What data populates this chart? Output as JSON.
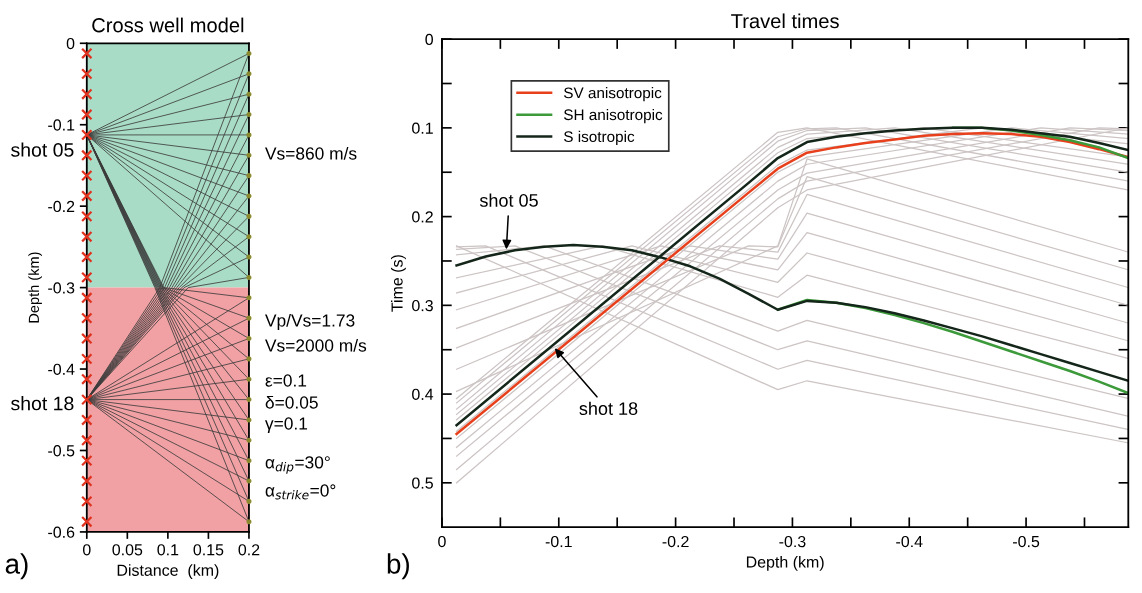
{
  "chart_data": [
    {
      "type": "line",
      "title": "Cross well model",
      "xlabel": "Distance  (km)",
      "ylabel": "Depth (km)",
      "xlim": [
        0,
        0.2
      ],
      "ylim": [
        -0.6,
        0
      ],
      "xticks": [
        0,
        0.05,
        0.1,
        0.15,
        0.2
      ],
      "yticks": [
        0,
        -0.1,
        -0.2,
        -0.3,
        -0.4,
        -0.5,
        -0.6
      ],
      "grid": false,
      "legend": false,
      "bands": [
        {
          "axis": "y",
          "from": -0.3,
          "to": 0,
          "color": "#a9dcc6"
        },
        {
          "axis": "y",
          "from": -0.6,
          "to": -0.3,
          "color": "#f1a1a4"
        }
      ],
      "annotations": [
        "Vs=860 m/s",
        "Vp/Vs=1.73",
        "Vs=2000 m/s",
        "ε=0.1",
        "δ=0.05",
        "γ=0.1",
        "α$_{dip}$=30°",
        "α$_{strike}$=0°",
        "a)",
        {
          "text": "shot 05",
          "x": 0,
          "y": -0.1125
        },
        {
          "text": "shot 18",
          "x": 0,
          "y": -0.4375
        }
      ],
      "series": [
        {
          "type": "line",
          "color": "#3c3c3c",
          "x": [
            0,
            0.2
          ],
          "values": [
            -0.1125,
            -0.0125
          ]
        },
        {
          "type": "line",
          "color": "#3c3c3c",
          "x": [
            0,
            0.2
          ],
          "values": [
            -0.1125,
            -0.0375
          ]
        },
        {
          "type": "line",
          "color": "#3c3c3c",
          "x": [
            0,
            0.2
          ],
          "values": [
            -0.1125,
            -0.0625
          ]
        },
        {
          "type": "line",
          "color": "#3c3c3c",
          "x": [
            0,
            0.2
          ],
          "values": [
            -0.1125,
            -0.0875
          ]
        },
        {
          "type": "line",
          "color": "#3c3c3c",
          "x": [
            0,
            0.2
          ],
          "values": [
            -0.1125,
            -0.1125
          ]
        },
        {
          "type": "line",
          "color": "#3c3c3c",
          "x": [
            0,
            0.2
          ],
          "values": [
            -0.1125,
            -0.1375
          ]
        },
        {
          "type": "line",
          "color": "#3c3c3c",
          "x": [
            0,
            0.2
          ],
          "values": [
            -0.1125,
            -0.1625
          ]
        },
        {
          "type": "line",
          "color": "#3c3c3c",
          "x": [
            0,
            0.2
          ],
          "values": [
            -0.1125,
            -0.1875
          ]
        },
        {
          "type": "line",
          "color": "#3c3c3c",
          "x": [
            0,
            0.2
          ],
          "values": [
            -0.1125,
            -0.2125
          ]
        },
        {
          "type": "line",
          "color": "#3c3c3c",
          "x": [
            0,
            0.2
          ],
          "values": [
            -0.1125,
            -0.2375
          ]
        },
        {
          "type": "line",
          "color": "#3c3c3c",
          "x": [
            0,
            0.2
          ],
          "values": [
            -0.1125,
            -0.2625
          ]
        },
        {
          "type": "line",
          "color": "#3c3c3c",
          "x": [
            0,
            0.2
          ],
          "values": [
            -0.1125,
            -0.2875
          ]
        },
        {
          "type": "line",
          "color": "#3c3c3c",
          "x": [
            0,
            0.095,
            0.2
          ],
          "values": [
            -0.1125,
            -0.3,
            -0.3125
          ]
        },
        {
          "type": "line",
          "color": "#3c3c3c",
          "x": [
            0,
            0.094,
            0.2
          ],
          "values": [
            -0.1125,
            -0.3,
            -0.3375
          ]
        },
        {
          "type": "line",
          "color": "#3c3c3c",
          "x": [
            0,
            0.093,
            0.2
          ],
          "values": [
            -0.1125,
            -0.3,
            -0.3625
          ]
        },
        {
          "type": "line",
          "color": "#3c3c3c",
          "x": [
            0,
            0.092,
            0.2
          ],
          "values": [
            -0.1125,
            -0.3,
            -0.3875
          ]
        },
        {
          "type": "line",
          "color": "#3c3c3c",
          "x": [
            0,
            0.091,
            0.2
          ],
          "values": [
            -0.1125,
            -0.3,
            -0.4125
          ]
        },
        {
          "type": "line",
          "color": "#3c3c3c",
          "x": [
            0,
            0.09,
            0.2
          ],
          "values": [
            -0.1125,
            -0.3,
            -0.4375
          ]
        },
        {
          "type": "line",
          "color": "#3c3c3c",
          "x": [
            0,
            0.089,
            0.2
          ],
          "values": [
            -0.1125,
            -0.3,
            -0.4625
          ]
        },
        {
          "type": "line",
          "color": "#3c3c3c",
          "x": [
            0,
            0.088,
            0.2
          ],
          "values": [
            -0.1125,
            -0.3,
            -0.4875
          ]
        },
        {
          "type": "line",
          "color": "#3c3c3c",
          "x": [
            0,
            0.087,
            0.2
          ],
          "values": [
            -0.1125,
            -0.3,
            -0.5125
          ]
        },
        {
          "type": "line",
          "color": "#3c3c3c",
          "x": [
            0,
            0.086,
            0.2
          ],
          "values": [
            -0.1125,
            -0.3,
            -0.5375
          ]
        },
        {
          "type": "line",
          "color": "#3c3c3c",
          "x": [
            0,
            0.085,
            0.2
          ],
          "values": [
            -0.1125,
            -0.3,
            -0.5625
          ]
        },
        {
          "type": "line",
          "color": "#3c3c3c",
          "x": [
            0,
            0.084,
            0.2
          ],
          "values": [
            -0.1125,
            -0.3,
            -0.5875
          ]
        },
        {
          "type": "line",
          "color": "#3c3c3c",
          "x": [
            0,
            0.09,
            0.2
          ],
          "values": [
            -0.4375,
            -0.3,
            -0.0125
          ]
        },
        {
          "type": "line",
          "color": "#3c3c3c",
          "x": [
            0,
            0.093,
            0.2
          ],
          "values": [
            -0.4375,
            -0.3,
            -0.0375
          ]
        },
        {
          "type": "line",
          "color": "#3c3c3c",
          "x": [
            0,
            0.096,
            0.2
          ],
          "values": [
            -0.4375,
            -0.3,
            -0.0625
          ]
        },
        {
          "type": "line",
          "color": "#3c3c3c",
          "x": [
            0,
            0.099,
            0.2
          ],
          "values": [
            -0.4375,
            -0.3,
            -0.0875
          ]
        },
        {
          "type": "line",
          "color": "#3c3c3c",
          "x": [
            0,
            0.102,
            0.2
          ],
          "values": [
            -0.4375,
            -0.3,
            -0.1125
          ]
        },
        {
          "type": "line",
          "color": "#3c3c3c",
          "x": [
            0,
            0.105,
            0.2
          ],
          "values": [
            -0.4375,
            -0.3,
            -0.1375
          ]
        },
        {
          "type": "line",
          "color": "#3c3c3c",
          "x": [
            0,
            0.108,
            0.2
          ],
          "values": [
            -0.4375,
            -0.3,
            -0.1625
          ]
        },
        {
          "type": "line",
          "color": "#3c3c3c",
          "x": [
            0,
            0.111,
            0.2
          ],
          "values": [
            -0.4375,
            -0.3,
            -0.1875
          ]
        },
        {
          "type": "line",
          "color": "#3c3c3c",
          "x": [
            0,
            0.114,
            0.2
          ],
          "values": [
            -0.4375,
            -0.3,
            -0.2125
          ]
        },
        {
          "type": "line",
          "color": "#3c3c3c",
          "x": [
            0,
            0.117,
            0.2
          ],
          "values": [
            -0.4375,
            -0.3,
            -0.2375
          ]
        },
        {
          "type": "line",
          "color": "#3c3c3c",
          "x": [
            0,
            0.12,
            0.2
          ],
          "values": [
            -0.4375,
            -0.3,
            -0.2625
          ]
        },
        {
          "type": "line",
          "color": "#3c3c3c",
          "x": [
            0,
            0.125,
            0.2
          ],
          "values": [
            -0.4375,
            -0.3,
            -0.2875
          ]
        },
        {
          "type": "line",
          "color": "#3c3c3c",
          "x": [
            0,
            0.2
          ],
          "values": [
            -0.4375,
            -0.3125
          ]
        },
        {
          "type": "line",
          "color": "#3c3c3c",
          "x": [
            0,
            0.2
          ],
          "values": [
            -0.4375,
            -0.3375
          ]
        },
        {
          "type": "line",
          "color": "#3c3c3c",
          "x": [
            0,
            0.2
          ],
          "values": [
            -0.4375,
            -0.3625
          ]
        },
        {
          "type": "line",
          "color": "#3c3c3c",
          "x": [
            0,
            0.2
          ],
          "values": [
            -0.4375,
            -0.3875
          ]
        },
        {
          "type": "line",
          "color": "#3c3c3c",
          "x": [
            0,
            0.2
          ],
          "values": [
            -0.4375,
            -0.4125
          ]
        },
        {
          "type": "line",
          "color": "#3c3c3c",
          "x": [
            0,
            0.2
          ],
          "values": [
            -0.4375,
            -0.4375
          ]
        },
        {
          "type": "line",
          "color": "#3c3c3c",
          "x": [
            0,
            0.2
          ],
          "values": [
            -0.4375,
            -0.4625
          ]
        },
        {
          "type": "line",
          "color": "#3c3c3c",
          "x": [
            0,
            0.2
          ],
          "values": [
            -0.4375,
            -0.4875
          ]
        },
        {
          "type": "line",
          "color": "#3c3c3c",
          "x": [
            0,
            0.2
          ],
          "values": [
            -0.4375,
            -0.5125
          ]
        },
        {
          "type": "line",
          "color": "#3c3c3c",
          "x": [
            0,
            0.2
          ],
          "values": [
            -0.4375,
            -0.5375
          ]
        },
        {
          "type": "line",
          "color": "#3c3c3c",
          "x": [
            0,
            0.2
          ],
          "values": [
            -0.4375,
            -0.5625
          ]
        },
        {
          "type": "line",
          "color": "#3c3c3c",
          "x": [
            0,
            0.2
          ],
          "values": [
            -0.4375,
            -0.5875
          ]
        },
        {
          "type": "scatter",
          "marker": "circle",
          "color": "#8c8a2e",
          "x": [
            0.2,
            0.2,
            0.2,
            0.2,
            0.2,
            0.2,
            0.2,
            0.2,
            0.2,
            0.2,
            0.2,
            0.2,
            0.2,
            0.2,
            0.2,
            0.2,
            0.2,
            0.2,
            0.2,
            0.2,
            0.2,
            0.2,
            0.2,
            0.2
          ],
          "values": [
            -0.0125,
            -0.0375,
            -0.0625,
            -0.0875,
            -0.1125,
            -0.1375,
            -0.1625,
            -0.1875,
            -0.2125,
            -0.2375,
            -0.2625,
            -0.2875,
            -0.3125,
            -0.3375,
            -0.3625,
            -0.3875,
            -0.4125,
            -0.4375,
            -0.4625,
            -0.4875,
            -0.5125,
            -0.5375,
            -0.5625,
            -0.5875
          ]
        },
        {
          "type": "scatter",
          "marker": "cross",
          "color": "#e0321e",
          "x": [
            0,
            0,
            0,
            0,
            0,
            0,
            0,
            0,
            0,
            0,
            0,
            0,
            0,
            0,
            0,
            0,
            0,
            0,
            0,
            0,
            0,
            0,
            0,
            0
          ],
          "values": [
            -0.0125,
            -0.0375,
            -0.0625,
            -0.0875,
            -0.1125,
            -0.1375,
            -0.1625,
            -0.1875,
            -0.2125,
            -0.2375,
            -0.2625,
            -0.2875,
            -0.3125,
            -0.3375,
            -0.3625,
            -0.3875,
            -0.4125,
            -0.4375,
            -0.4625,
            -0.4875,
            -0.5125,
            -0.5375,
            -0.5625,
            -0.5875
          ]
        }
      ]
    },
    {
      "type": "line",
      "title": "Travel times",
      "xlabel": "Depth (km)",
      "ylabel": "Time (s)",
      "xlim": [
        0,
        -0.5875
      ],
      "ylim": [
        0.55,
        0
      ],
      "xticks": [
        0,
        {
          "value": -0.05,
          "label": null
        },
        -0.1,
        {
          "value": -0.15,
          "label": null
        },
        -0.2,
        {
          "value": -0.25,
          "label": null
        },
        -0.3,
        {
          "value": -0.35,
          "label": null
        },
        -0.4,
        {
          "value": -0.45,
          "label": null
        },
        -0.5,
        {
          "value": -0.55,
          "label": null
        }
      ],
      "yticks": [
        0,
        {
          "value": 0.05,
          "label": null
        },
        0.1,
        {
          "value": 0.15,
          "label": null
        },
        0.2,
        {
          "value": 0.25,
          "label": null
        },
        0.3,
        {
          "value": 0.35,
          "label": null
        },
        0.4,
        {
          "value": 0.45,
          "label": null
        },
        0.5
      ],
      "grid": false,
      "legend": "top left",
      "annotations": [
        "b)",
        {
          "text": "shot 05",
          "x": -0.055,
          "y": 0.24
        },
        {
          "text": "shot 18",
          "x": -0.095,
          "y": 0.346
        }
      ],
      "series": [
        {
          "color": "#cdc4c4",
          "x": [
            -0.0125,
            -0.2875,
            -0.3125,
            -0.5875
          ],
          "values": [
            0.233,
            0.395,
            0.385,
            0.455
          ]
        },
        {
          "color": "#cdc4c4",
          "x": [
            -0.0125,
            -0.0375,
            -0.2875,
            -0.3125,
            -0.5875
          ],
          "values": [
            0.234,
            0.233,
            0.372,
            0.362,
            0.44
          ]
        },
        {
          "color": "#cdc4c4",
          "x": [
            -0.0125,
            -0.0625,
            -0.2875,
            -0.3125,
            -0.5875
          ],
          "values": [
            0.237,
            0.233,
            0.35,
            0.34,
            0.425
          ]
        },
        {
          "color": "#cdc4c4",
          "x": [
            -0.0125,
            -0.0875,
            -0.2875,
            -0.3125,
            -0.5875
          ],
          "values": [
            0.243,
            0.233,
            0.329,
            0.317,
            0.405
          ]
        },
        {
          "color": "#cdc4c4",
          "x": [
            -0.0125,
            -0.1375,
            -0.2875,
            -0.3125,
            -0.5875
          ],
          "values": [
            0.269,
            0.233,
            0.291,
            0.266,
            0.36
          ]
        },
        {
          "color": "#cdc4c4",
          "x": [
            -0.0125,
            -0.1625,
            -0.2875,
            -0.3125,
            -0.5875
          ],
          "values": [
            0.286,
            0.233,
            0.274,
            0.241,
            0.34
          ]
        },
        {
          "color": "#cdc4c4",
          "x": [
            -0.0125,
            -0.1875,
            -0.2875,
            -0.3125,
            -0.5875
          ],
          "values": [
            0.305,
            0.233,
            0.26,
            0.218,
            0.32
          ]
        },
        {
          "color": "#cdc4c4",
          "x": [
            -0.0125,
            -0.2125,
            -0.2875,
            -0.3125,
            -0.5875
          ],
          "values": [
            0.326,
            0.233,
            0.248,
            0.196,
            0.3
          ]
        },
        {
          "color": "#cdc4c4",
          "x": [
            -0.0125,
            -0.2375,
            -0.2875,
            -0.3125,
            -0.5875
          ],
          "values": [
            0.348,
            0.233,
            0.24,
            0.175,
            0.28
          ]
        },
        {
          "color": "#cdc4c4",
          "x": [
            -0.0125,
            -0.2625,
            -0.2875,
            -0.3125,
            -0.5875
          ],
          "values": [
            0.372,
            0.233,
            0.234,
            0.155,
            0.26
          ]
        },
        {
          "color": "#cdc4c4",
          "x": [
            -0.0125,
            -0.2875,
            -0.3125,
            -0.5875
          ],
          "values": [
            0.397,
            0.233,
            0.135,
            0.24
          ]
        },
        {
          "color": "#cdc4c4",
          "x": [
            -0.0125,
            -0.2875,
            -0.3125,
            -0.5875
          ],
          "values": [
            0.405,
            0.105,
            0.1,
            0.17
          ]
        },
        {
          "color": "#cdc4c4",
          "x": [
            -0.0125,
            -0.2875,
            -0.3125,
            -0.3375,
            -0.5875
          ],
          "values": [
            0.41,
            0.11,
            0.101,
            0.1,
            0.16
          ]
        },
        {
          "color": "#cdc4c4",
          "x": [
            -0.0125,
            -0.2875,
            -0.3125,
            -0.3625,
            -0.5875
          ],
          "values": [
            0.417,
            0.115,
            0.103,
            0.1,
            0.15
          ]
        },
        {
          "color": "#cdc4c4",
          "x": [
            -0.0125,
            -0.2875,
            -0.3125,
            -0.3875,
            -0.5875
          ],
          "values": [
            0.423,
            0.122,
            0.107,
            0.1,
            0.141
          ]
        },
        {
          "color": "#cdc4c4",
          "x": [
            -0.0125,
            -0.2875,
            -0.3125,
            -0.4125,
            -0.5875
          ],
          "values": [
            0.429,
            0.128,
            0.112,
            0.1,
            0.133
          ]
        },
        {
          "color": "#cdc4c4",
          "x": [
            -0.0125,
            -0.2875,
            -0.3125,
            -0.4625,
            -0.5875
          ],
          "values": [
            0.442,
            0.142,
            0.125,
            0.1,
            0.118
          ]
        },
        {
          "color": "#cdc4c4",
          "x": [
            -0.0125,
            -0.2875,
            -0.3125,
            -0.4875,
            -0.5875
          ],
          "values": [
            0.45,
            0.15,
            0.133,
            0.1,
            0.112
          ]
        },
        {
          "color": "#cdc4c4",
          "x": [
            -0.0125,
            -0.2875,
            -0.3125,
            -0.5125,
            -0.5875
          ],
          "values": [
            0.46,
            0.16,
            0.141,
            0.1,
            0.107
          ]
        },
        {
          "color": "#cdc4c4",
          "x": [
            -0.0125,
            -0.2875,
            -0.3125,
            -0.5375,
            -0.5875
          ],
          "values": [
            0.47,
            0.17,
            0.151,
            0.1,
            0.103
          ]
        },
        {
          "color": "#cdc4c4",
          "x": [
            -0.0125,
            -0.2875,
            -0.3125,
            -0.5625,
            -0.5875
          ],
          "values": [
            0.485,
            0.18,
            0.16,
            0.1,
            0.101
          ]
        },
        {
          "color": "#cdc4c4",
          "x": [
            -0.0125,
            -0.2875,
            -0.3125,
            -0.5875
          ],
          "values": [
            0.5,
            0.19,
            0.17,
            0.1
          ]
        },
        {
          "color": "#3c9a3a",
          "line_style": "solid",
          "x": [
            -0.2875,
            -0.3125,
            -0.3375,
            -0.3625,
            -0.3875,
            -0.4125,
            -0.4375,
            -0.4625,
            -0.4875,
            -0.5125,
            -0.5375,
            -0.5625,
            -0.5875
          ],
          "values": [
            0.305,
            0.294,
            0.297,
            0.303,
            0.311,
            0.32,
            0.33,
            0.341,
            0.352,
            0.363,
            0.374,
            0.386,
            0.399
          ]
        },
        {
          "color": "#14261a",
          "line_style": "solid",
          "x": [
            -0.0125,
            -0.0375,
            -0.0625,
            -0.0875,
            -0.1125,
            -0.1375,
            -0.1625,
            -0.1875,
            -0.2125,
            -0.2375,
            -0.2625,
            -0.2875,
            -0.3125,
            -0.3375,
            -0.3625,
            -0.3875,
            -0.4125,
            -0.4375,
            -0.4625,
            -0.4875,
            -0.5125,
            -0.5375,
            -0.5625,
            -0.5875
          ],
          "values": [
            0.255,
            0.245,
            0.238,
            0.234,
            0.232,
            0.234,
            0.238,
            0.246,
            0.256,
            0.27,
            0.287,
            0.305,
            0.295,
            0.297,
            0.302,
            0.309,
            0.317,
            0.326,
            0.335,
            0.345,
            0.355,
            0.365,
            0.375,
            0.385
          ]
        },
        {
          "name": "SV anisotropic",
          "color": "#e8401c",
          "line_style": "solid",
          "x": [
            -0.0125,
            -0.2625,
            -0.2875,
            -0.3125,
            -0.3375,
            -0.3625,
            -0.3875,
            -0.4125,
            -0.4375,
            -0.4625,
            -0.4875,
            -0.5125,
            -0.5375,
            -0.5625,
            -0.5875
          ],
          "values": [
            0.445,
            0.173,
            0.146,
            0.128,
            0.122,
            0.117,
            0.113,
            0.109,
            0.107,
            0.106,
            0.107,
            0.11,
            0.116,
            0.124,
            0.133
          ]
        },
        {
          "name": "SH anisotropic",
          "color": "#3c9a3a",
          "line_style": "solid",
          "x": [
            -0.4375,
            -0.4625,
            -0.4875,
            -0.5125,
            -0.5375,
            -0.5625,
            -0.5875
          ],
          "values": [
            0.1,
            0.1,
            0.103,
            0.108,
            0.114,
            0.122,
            0.134
          ]
        },
        {
          "name": "S isotropic",
          "color": "#14261a",
          "line_style": "solid",
          "x": [
            -0.0125,
            -0.2625,
            -0.2875,
            -0.3125,
            -0.3375,
            -0.3625,
            -0.3875,
            -0.4125,
            -0.4375,
            -0.4625,
            -0.4875,
            -0.5125,
            -0.5375,
            -0.5625,
            -0.5875
          ],
          "values": [
            0.435,
            0.162,
            0.134,
            0.116,
            0.11,
            0.106,
            0.103,
            0.101,
            0.1,
            0.1,
            0.102,
            0.106,
            0.11,
            0.117,
            0.125
          ]
        }
      ]
    }
  ]
}
